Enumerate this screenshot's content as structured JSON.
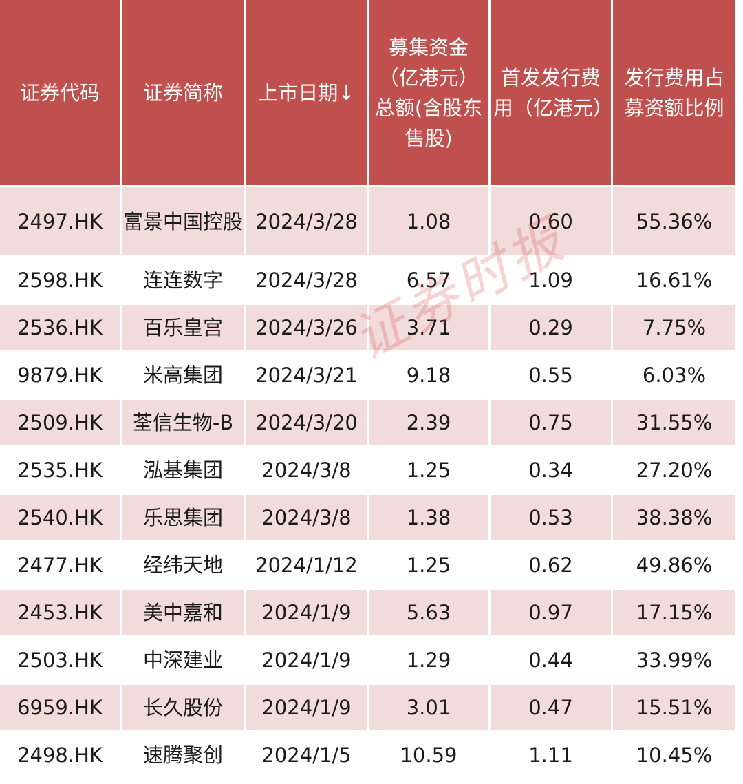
{
  "table": {
    "headers": [
      "证券代码",
      "证券简称",
      "上市日期↓",
      "募集资金（亿港元）总额(含股东售股)",
      "首发发行费用（亿港元）",
      "发行费用占募资额比例"
    ],
    "rows": [
      [
        "2497.HK",
        "富景中国控股",
        "2024/3/28",
        "1.08",
        "0.60",
        "55.36%"
      ],
      [
        "2598.HK",
        "连连数字",
        "2024/3/28",
        "6.57",
        "1.09",
        "16.61%"
      ],
      [
        "2536.HK",
        "百乐皇宫",
        "2024/3/26",
        "3.71",
        "0.29",
        "7.75%"
      ],
      [
        "9879.HK",
        "米高集团",
        "2024/3/21",
        "9.18",
        "0.55",
        "6.03%"
      ],
      [
        "2509.HK",
        "荃信生物-B",
        "2024/3/20",
        "2.39",
        "0.75",
        "31.55%"
      ],
      [
        "2535.HK",
        "泓基集团",
        "2024/3/8",
        "1.25",
        "0.34",
        "27.20%"
      ],
      [
        "2540.HK",
        "乐思集团",
        "2024/3/8",
        "1.38",
        "0.53",
        "38.38%"
      ],
      [
        "2477.HK",
        "经纬天地",
        "2024/1/12",
        "1.25",
        "0.62",
        "49.86%"
      ],
      [
        "2453.HK",
        "美中嘉和",
        "2024/1/9",
        "5.63",
        "0.97",
        "17.15%"
      ],
      [
        "2503.HK",
        "中深建业",
        "2024/1/9",
        "1.29",
        "0.44",
        "33.99%"
      ],
      [
        "6959.HK",
        "长久股份",
        "2024/1/9",
        "3.01",
        "0.47",
        "15.51%"
      ],
      [
        "2498.HK",
        "速腾聚创",
        "2024/1/5",
        "10.59",
        "1.11",
        "10.45%"
      ]
    ]
  },
  "watermark": "证券时报",
  "colors": {
    "header_bg": "#c0504d",
    "header_text": "#ffffff",
    "row_alt_bg": "#f2dcdb",
    "row_bg": "#ffffff"
  }
}
